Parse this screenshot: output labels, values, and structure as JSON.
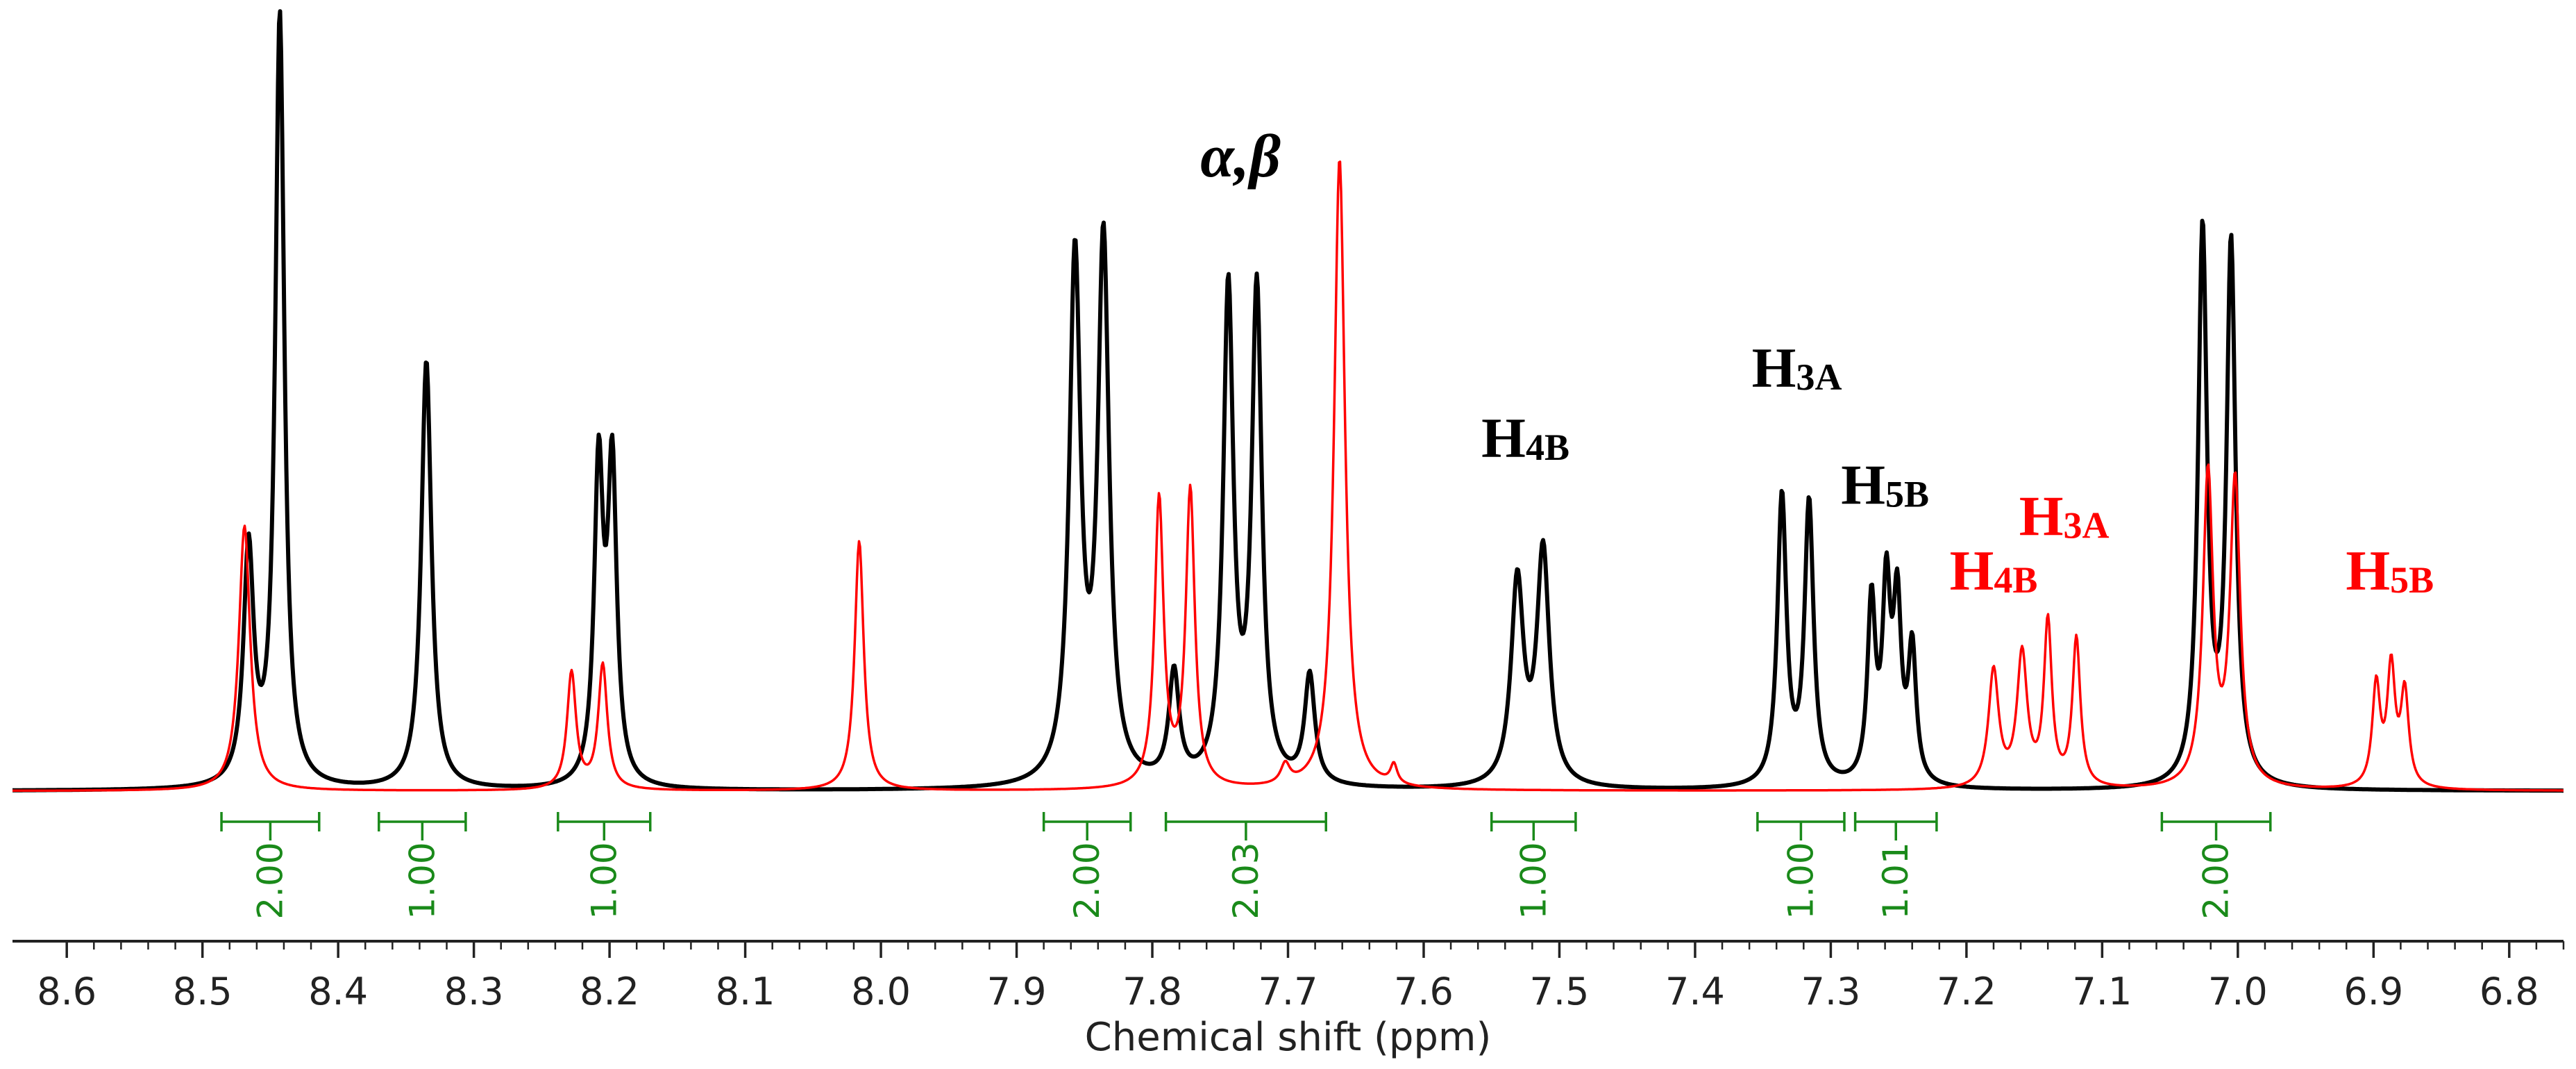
{
  "chart_data": {
    "type": "line",
    "xlabel": "Chemical shift (ppm)",
    "ylabel": "",
    "title": "",
    "xlim": [
      8.64,
      6.76
    ],
    "x_reversed": true,
    "ylim": [
      0,
      1.0
    ],
    "grid": false,
    "x_ticks": [
      "8.6",
      "8.5",
      "8.4",
      "8.3",
      "8.2",
      "8.1",
      "8.0",
      "7.9",
      "7.8",
      "7.7",
      "7.6",
      "7.5",
      "7.4",
      "7.3",
      "7.2",
      "7.1",
      "7.0",
      "6.9",
      "6.8"
    ],
    "x_tick_values": [
      8.6,
      8.5,
      8.4,
      8.3,
      8.2,
      8.1,
      8.0,
      7.9,
      7.8,
      7.7,
      7.6,
      7.5,
      7.4,
      7.3,
      7.2,
      7.1,
      7.0,
      6.9,
      6.8
    ],
    "colors": {
      "black": "#000000",
      "red": "#ff0000",
      "integral": "#1a8a1a"
    },
    "series": [
      {
        "color": "#000000",
        "peaks": [
          {
            "ppm": 8.466,
            "h": 0.3,
            "w": 0.0045
          },
          {
            "ppm": 8.443,
            "h": 0.99,
            "w": 0.004
          },
          {
            "ppm": 8.335,
            "h": 0.55,
            "w": 0.0045
          },
          {
            "ppm": 8.208,
            "h": 0.4,
            "w": 0.004
          },
          {
            "ppm": 8.198,
            "h": 0.4,
            "w": 0.004
          },
          {
            "ppm": 7.857,
            "h": 0.67,
            "w": 0.005
          },
          {
            "ppm": 7.836,
            "h": 0.69,
            "w": 0.005
          },
          {
            "ppm": 7.784,
            "h": 0.14,
            "w": 0.0045
          },
          {
            "ppm": 7.744,
            "h": 0.63,
            "w": 0.0045
          },
          {
            "ppm": 7.723,
            "h": 0.63,
            "w": 0.0045
          },
          {
            "ppm": 7.684,
            "h": 0.14,
            "w": 0.0045
          },
          {
            "ppm": 7.531,
            "h": 0.26,
            "w": 0.0055
          },
          {
            "ppm": 7.512,
            "h": 0.3,
            "w": 0.0055
          },
          {
            "ppm": 7.336,
            "h": 0.37,
            "w": 0.004
          },
          {
            "ppm": 7.316,
            "h": 0.36,
            "w": 0.004
          },
          {
            "ppm": 7.27,
            "h": 0.23,
            "w": 0.0035
          },
          {
            "ppm": 7.259,
            "h": 0.24,
            "w": 0.0035
          },
          {
            "ppm": 7.251,
            "h": 0.22,
            "w": 0.0035
          },
          {
            "ppm": 7.24,
            "h": 0.17,
            "w": 0.0035
          },
          {
            "ppm": 7.026,
            "h": 0.71,
            "w": 0.004
          },
          {
            "ppm": 7.005,
            "h": 0.69,
            "w": 0.004
          }
        ]
      },
      {
        "color": "#ff0000",
        "peaks": [
          {
            "ppm": 8.469,
            "h": 0.34,
            "w": 0.005
          },
          {
            "ppm": 8.228,
            "h": 0.15,
            "w": 0.004
          },
          {
            "ppm": 8.205,
            "h": 0.16,
            "w": 0.004
          },
          {
            "ppm": 8.016,
            "h": 0.32,
            "w": 0.004
          },
          {
            "ppm": 7.795,
            "h": 0.37,
            "w": 0.004
          },
          {
            "ppm": 7.772,
            "h": 0.38,
            "w": 0.004
          },
          {
            "ppm": 7.702,
            "h": 0.025,
            "w": 0.004
          },
          {
            "ppm": 7.662,
            "h": 0.81,
            "w": 0.0048
          },
          {
            "ppm": 7.622,
            "h": 0.025,
            "w": 0.003
          },
          {
            "ppm": 7.18,
            "h": 0.15,
            "w": 0.0045
          },
          {
            "ppm": 7.159,
            "h": 0.17,
            "w": 0.0045
          },
          {
            "ppm": 7.14,
            "h": 0.21,
            "w": 0.0035
          },
          {
            "ppm": 7.119,
            "h": 0.19,
            "w": 0.0035
          },
          {
            "ppm": 7.022,
            "h": 0.4,
            "w": 0.0045
          },
          {
            "ppm": 7.002,
            "h": 0.39,
            "w": 0.0045
          },
          {
            "ppm": 6.898,
            "h": 0.13,
            "w": 0.0035
          },
          {
            "ppm": 6.887,
            "h": 0.15,
            "w": 0.0035
          },
          {
            "ppm": 6.877,
            "h": 0.12,
            "w": 0.0035
          }
        ]
      }
    ],
    "integrals": [
      {
        "from": 8.486,
        "to": 8.414,
        "label": "2.00"
      },
      {
        "from": 8.37,
        "to": 8.306,
        "label": "1.00"
      },
      {
        "from": 8.238,
        "to": 8.17,
        "label": "1.00"
      },
      {
        "from": 7.88,
        "to": 7.816,
        "label": "2.00"
      },
      {
        "from": 7.79,
        "to": 7.672,
        "label": "2.03"
      },
      {
        "from": 7.55,
        "to": 7.488,
        "label": "1.00"
      },
      {
        "from": 7.354,
        "to": 7.29,
        "label": "1.00"
      },
      {
        "from": 7.282,
        "to": 7.222,
        "label": "1.01"
      },
      {
        "from": 7.056,
        "to": 6.976,
        "label": "2.00"
      }
    ],
    "annotations": [
      {
        "text": "α,β",
        "sub": "",
        "greek": true,
        "color": "#000000",
        "ppm": 7.735,
        "level": 0.79
      },
      {
        "text": "α,β",
        "sub": "",
        "greek": true,
        "color": "#ff0000",
        "ppm": 7.675,
        "level": 1.1
      },
      {
        "text": "H",
        "sub": "4B",
        "greek": false,
        "color": "#000000",
        "ppm": 7.525,
        "level": 0.43
      },
      {
        "text": "H",
        "sub": "3A",
        "greek": false,
        "color": "#000000",
        "ppm": 7.325,
        "level": 0.52
      },
      {
        "text": "H",
        "sub": "5B",
        "greek": false,
        "color": "#000000",
        "ppm": 7.26,
        "level": 0.37
      },
      {
        "text": "H",
        "sub": "4B",
        "greek": false,
        "color": "#ff0000",
        "ppm": 7.18,
        "level": 0.26
      },
      {
        "text": "H",
        "sub": "3A",
        "greek": false,
        "color": "#ff0000",
        "ppm": 7.128,
        "level": 0.33
      },
      {
        "text": "H",
        "sub": "5B",
        "greek": false,
        "color": "#ff0000",
        "ppm": 6.888,
        "level": 0.26
      }
    ]
  }
}
